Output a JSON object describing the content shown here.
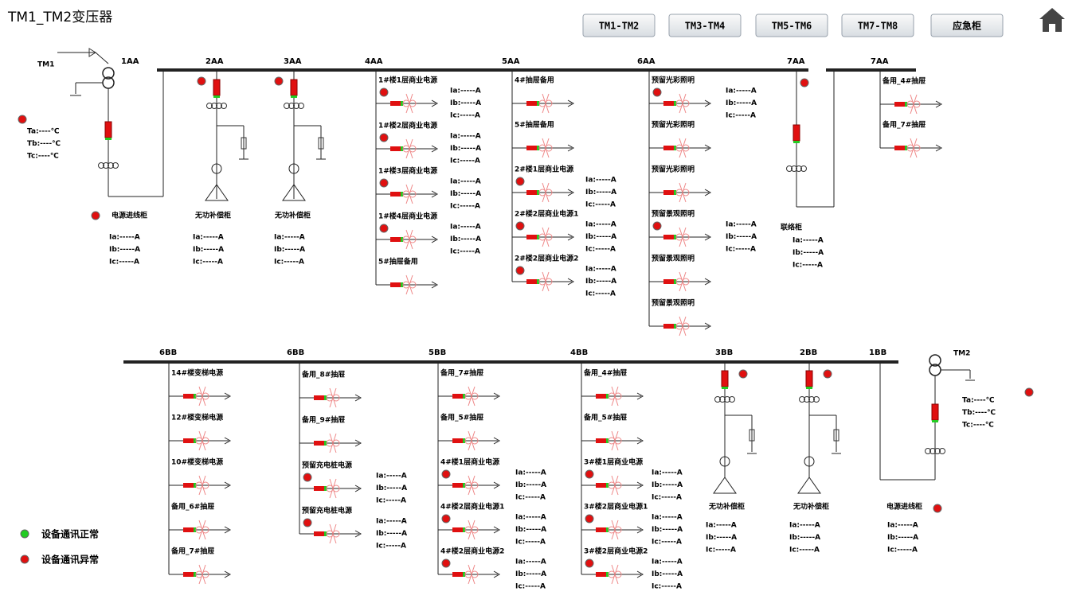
{
  "title": "TM1_TM2变压器",
  "nav": [
    "TM1-TM2",
    "TM3-TM4",
    "TM5-TM6",
    "TM7-TM8",
    "应急柜"
  ],
  "transformers": [
    {
      "label": "TM1",
      "temps": [
        "Ta:----℃",
        "Tb:----℃",
        "Tc:----℃"
      ]
    },
    {
      "label": "TM2",
      "temps": [
        "Ta:----℃",
        "Tb:----℃",
        "Tc:----℃"
      ]
    }
  ],
  "top": {
    "buses": [
      "1AA",
      "2AA",
      "3AA",
      "4AA",
      "5AA",
      "6AA",
      "7AA",
      "7AA"
    ],
    "cabinets": [
      {
        "name": "电源进线柜",
        "currents": [
          "Ia:-----A",
          "Ib:-----A",
          "Ic:-----A"
        ]
      },
      {
        "name": "无功补偿柜",
        "currents": [
          "Ia:-----A",
          "Ib:-----A",
          "Ic:-----A"
        ]
      },
      {
        "name": "无功补偿柜",
        "currents": [
          "Ia:-----A",
          "Ib:-----A",
          "Ic:-----A"
        ]
      },
      {
        "name": "联络柜",
        "currents": [
          "Ia:-----A",
          "Ib:-----A",
          "Ic:-----A"
        ]
      }
    ],
    "groups": [
      {
        "feeders": [
          {
            "name": "1#楼1层商业电源",
            "currents": [
              "Ia:-----A",
              "Ib:-----A",
              "Ic:-----A"
            ]
          },
          {
            "name": "1#楼2层商业电源",
            "currents": [
              "Ia:-----A",
              "Ib:-----A",
              "Ic:-----A"
            ]
          },
          {
            "name": "1#楼3层商业电源",
            "currents": [
              "Ia:-----A",
              "Ib:-----A",
              "Ic:-----A"
            ]
          },
          {
            "name": "1#楼4层商业电源",
            "currents": [
              "Ia:-----A",
              "Ib:-----A",
              "Ic:-----A"
            ]
          },
          {
            "name": "5#抽屉备用"
          }
        ]
      },
      {
        "feeders": [
          {
            "name": "4#抽屉备用"
          },
          {
            "name": "5#抽屉备用"
          },
          {
            "name": "2#楼1层商业电源",
            "currents": [
              "Ia:-----A",
              "Ib:-----A",
              "Ic:-----A"
            ]
          },
          {
            "name": "2#楼2层商业电源1",
            "currents": [
              "Ia:-----A",
              "Ib:-----A",
              "Ic:-----A"
            ]
          },
          {
            "name": "2#楼2层商业电源2",
            "currents": [
              "Ia:-----A",
              "Ib:-----A",
              "Ic:-----A"
            ]
          }
        ]
      },
      {
        "feeders": [
          {
            "name": "预留光彩照明",
            "currents": [
              "Ia:-----A",
              "Ib:-----A",
              "Ic:-----A"
            ]
          },
          {
            "name": "预留光彩照明"
          },
          {
            "name": "预留光彩照明"
          },
          {
            "name": "预留景观照明",
            "currents": [
              "Ia:-----A",
              "Ib:-----A",
              "Ic:-----A"
            ]
          },
          {
            "name": "预留景观照明"
          },
          {
            "name": "预留景观照明"
          }
        ]
      },
      {
        "feeders": [
          {
            "name": "备用_4#抽屉"
          },
          {
            "name": "备用_7#抽屉"
          }
        ]
      }
    ]
  },
  "bottom": {
    "buses": [
      "6BB",
      "6BB",
      "5BB",
      "4BB",
      "3BB",
      "2BB",
      "1BB"
    ],
    "cabinets": [
      {
        "name": "无功补偿柜",
        "currents": [
          "Ia:-----A",
          "Ib:-----A",
          "Ic:-----A"
        ]
      },
      {
        "name": "无功补偿柜",
        "currents": [
          "Ia:-----A",
          "Ib:-----A",
          "Ic:-----A"
        ]
      },
      {
        "name": "电源进线柜",
        "currents": [
          "Ia:-----A",
          "Ib:-----A",
          "Ic:-----A"
        ]
      }
    ],
    "groups": [
      {
        "feeders": [
          {
            "name": "14#楼变梯电源"
          },
          {
            "name": "12#楼变梯电源"
          },
          {
            "name": "10#楼变梯电源"
          },
          {
            "name": "备用_6#抽屉"
          },
          {
            "name": "备用_7#抽屉"
          }
        ]
      },
      {
        "feeders": [
          {
            "name": "备用_8#抽屉"
          },
          {
            "name": "备用_9#抽屉"
          },
          {
            "name": "预留充电桩电源",
            "currents": [
              "Ia:-----A",
              "Ib:-----A",
              "Ic:-----A"
            ]
          },
          {
            "name": "预留充电桩电源",
            "currents": [
              "Ia:-----A",
              "Ib:-----A",
              "Ic:-----A"
            ]
          }
        ]
      },
      {
        "feeders": [
          {
            "name": "备用_7#抽屉"
          },
          {
            "name": "备用_5#抽屉"
          },
          {
            "name": "4#楼1层商业电源",
            "currents": [
              "Ia:-----A",
              "Ib:-----A",
              "Ic:-----A"
            ]
          },
          {
            "name": "4#楼2层商业电源1",
            "currents": [
              "Ia:-----A",
              "Ib:-----A",
              "Ic:-----A"
            ]
          },
          {
            "name": "4#楼2层商业电源2",
            "currents": [
              "Ia:-----A",
              "Ib:-----A",
              "Ic:-----A"
            ]
          }
        ]
      },
      {
        "feeders": [
          {
            "name": "备用_4#抽屉"
          },
          {
            "name": "备用_5#抽屉"
          },
          {
            "name": "3#楼1层商业电源",
            "currents": [
              "Ia:-----A",
              "Ib:-----A",
              "Ic:-----A"
            ]
          },
          {
            "name": "3#楼2层商业电源1",
            "currents": [
              "Ia:-----A",
              "Ib:-----A",
              "Ic:-----A"
            ]
          },
          {
            "name": "3#楼2层商业电源2",
            "currents": [
              "Ia:-----A",
              "Ib:-----A",
              "Ic:-----A"
            ]
          }
        ]
      }
    ]
  },
  "legend": [
    "设备通讯正常",
    "设备通讯异常"
  ]
}
